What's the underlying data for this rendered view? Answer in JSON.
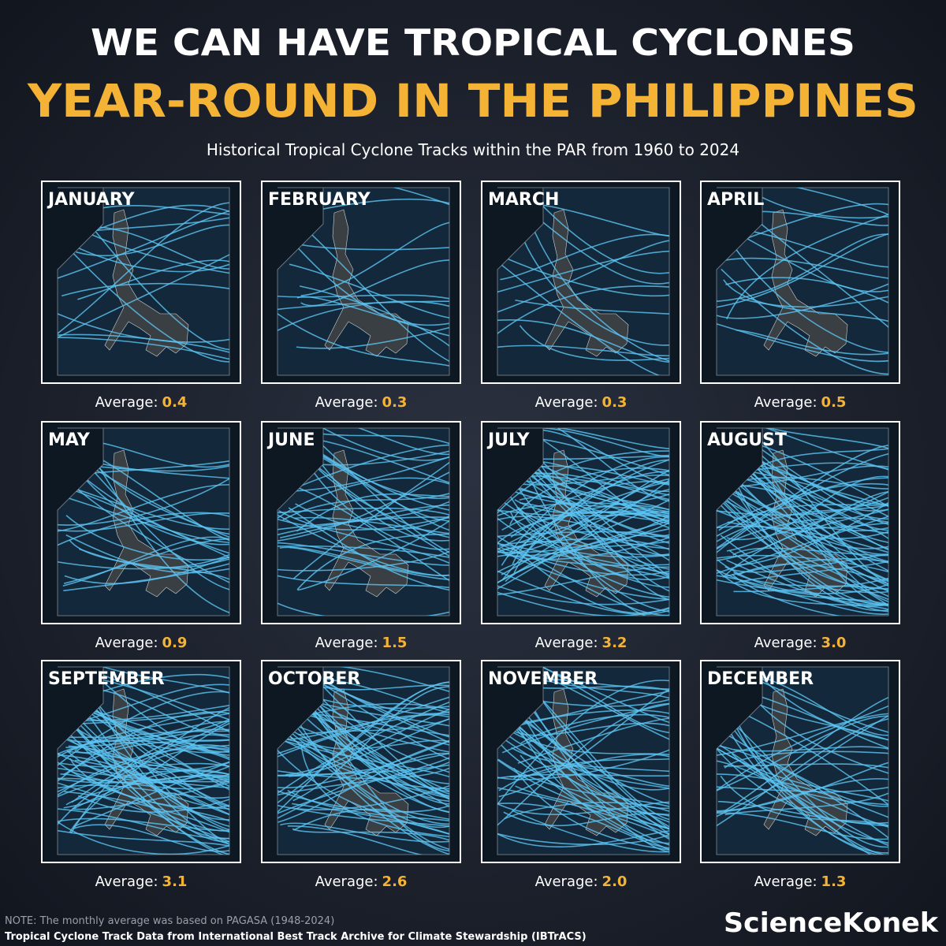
{
  "header": {
    "title_line1": "WE CAN HAVE TROPICAL CYCLONES",
    "title_line2": "YEAR-ROUND IN THE PHILIPPINES",
    "subtitle": "Historical Tropical Cyclone Tracks within the PAR from 1960 to 2024"
  },
  "panels": [
    {
      "month": "JANUARY",
      "label": "Average:",
      "value": "0.4"
    },
    {
      "month": "FEBRUARY",
      "label": "Average:",
      "value": "0.3"
    },
    {
      "month": "MARCH",
      "label": "Average:",
      "value": "0.3"
    },
    {
      "month": "APRIL",
      "label": "Average:",
      "value": "0.5"
    },
    {
      "month": "MAY",
      "label": "Average:",
      "value": "0.9"
    },
    {
      "month": "JUNE",
      "label": "Average:",
      "value": "1.5"
    },
    {
      "month": "JULY",
      "label": "Average:",
      "value": "3.2"
    },
    {
      "month": "AUGUST",
      "label": "Average:",
      "value": "3.0"
    },
    {
      "month": "SEPTEMBER",
      "label": "Average:",
      "value": "3.1"
    },
    {
      "month": "OCTOBER",
      "label": "Average:",
      "value": "2.6"
    },
    {
      "month": "NOVEMBER",
      "label": "Average:",
      "value": "2.0"
    },
    {
      "month": "DECEMBER",
      "label": "Average:",
      "value": "1.3"
    }
  ],
  "footer": {
    "note": "NOTE: The monthly average was based on PAGASA (1948-2024)",
    "source": "Tropical Cyclone Track Data from International Best Track Archive for Climate Stewardship (IBTrACS)",
    "brand": "ScienceKonek"
  }
}
